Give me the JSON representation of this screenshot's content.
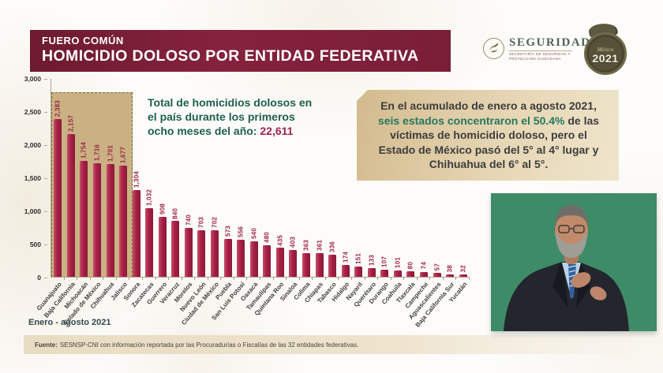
{
  "header": {
    "supertitle": "FUERO COMÚN",
    "title": "HOMICIDIO DOLOSO POR ENTIDAD FEDERATIVA"
  },
  "logos": {
    "seguridad_wordmark": "SEGURIDAD",
    "seguridad_subtitle": "SECRETARÍA DE SEGURIDAD Y PROTECCIÓN CIUDADANA",
    "emblem_word": "México",
    "emblem_year": "2021"
  },
  "annotation": {
    "text_prefix": "Total de homicidios dolosos en el país durante los primeros ocho meses del año: ",
    "total": "22,611"
  },
  "callout": {
    "part1": "En el acumulado de enero a agosto 2021, ",
    "highlight": "seis estados concentraron el 50.4%",
    "part2": " de las víctimas de homicidio doloso, pero el Estado de México pasó del 5° al 4° lugar y Chihuahua del 6° al 5°."
  },
  "chart_data": {
    "type": "bar",
    "title": "Homicidio doloso por entidad federativa",
    "xlabel": "",
    "ylabel": "",
    "ylim": [
      0,
      3000
    ],
    "yticks": [
      3000,
      2500,
      2000,
      1500,
      1000,
      500,
      0
    ],
    "grid": false,
    "legend": false,
    "bar_value_labels": true,
    "highlighted_first_n": 6,
    "categories": [
      "Guanajuato",
      "Baja California",
      "Michoacán",
      "Estado de México",
      "Chihuahua",
      "Jalisco",
      "Sonora",
      "Zacatecas",
      "Guerrero",
      "Veracruz",
      "Morelos",
      "Nuevo León",
      "Ciudad de México",
      "Puebla",
      "San Luis Potosí",
      "Oaxaca",
      "Tamaulipas",
      "Quintana Roo",
      "Sinaloa",
      "Colima",
      "Chiapas",
      "Tabasco",
      "Hidalgo",
      "Nayarit",
      "Querétaro",
      "Durango",
      "Coahuila",
      "Tlaxcala",
      "Campeche",
      "Aguascalientes",
      "Baja California Sur",
      "Yucatán"
    ],
    "values": [
      2383,
      2157,
      1754,
      1716,
      1701,
      1677,
      1304,
      1032,
      908,
      840,
      740,
      703,
      702,
      573,
      556,
      540,
      480,
      435,
      403,
      363,
      361,
      336,
      174,
      151,
      133,
      107,
      101,
      80,
      74,
      57,
      38,
      32
    ]
  },
  "period_label": "Enero - agosto 2021",
  "footer": {
    "source_label": "Fuente:",
    "source_text": " SESNSP-CNI con información reportada por las Procuradurías o Fiscalías de las 32 entidades federativas."
  },
  "colors": {
    "title_bar": "#7a1e37",
    "bar": "#a81f45",
    "value_label": "#9d2449",
    "highlight_box": "#c9b183",
    "callout_bg": "#d3ba8d",
    "annotation_green": "#1d5f4f",
    "callout_green": "#27785e",
    "interpreter_bg": "#3e8b67"
  }
}
